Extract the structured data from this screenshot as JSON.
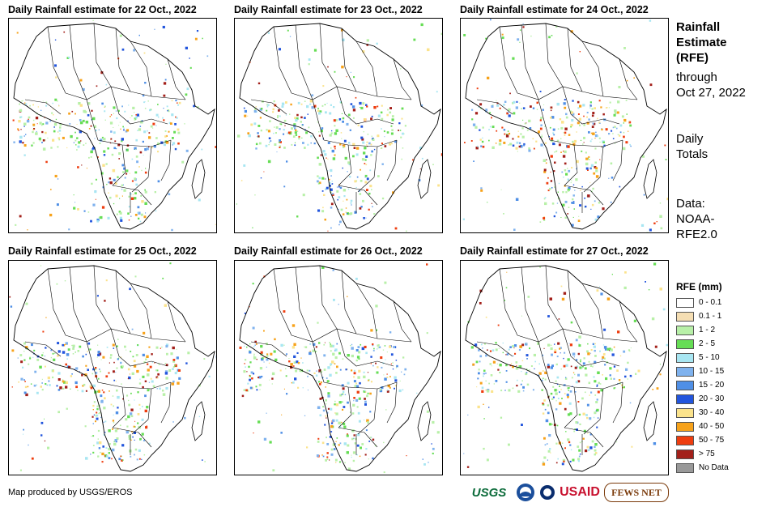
{
  "panels": [
    {
      "title": "Daily Rainfall estimate for 22 Oct., 2022"
    },
    {
      "title": "Daily Rainfall estimate for 23 Oct., 2022"
    },
    {
      "title": "Daily Rainfall estimate for 24 Oct., 2022"
    },
    {
      "title": "Daily Rainfall estimate for 25 Oct., 2022"
    },
    {
      "title": "Daily Rainfall estimate for 26 Oct., 2022"
    },
    {
      "title": "Daily Rainfall estimate for 27 Oct., 2022"
    }
  ],
  "side": {
    "heading": [
      "Rainfall",
      "Estimate",
      "(RFE)"
    ],
    "through": [
      "through",
      "Oct 27, 2022"
    ],
    "totals": [
      "Daily",
      "Totals"
    ],
    "source": [
      "Data:",
      "NOAA-",
      "RFE2.0"
    ]
  },
  "legend": {
    "title": "RFE (mm)",
    "items": [
      {
        "label": "0 - 0.1",
        "color": "#ffffff"
      },
      {
        "label": "0.1 - 1",
        "color": "#f5deb3"
      },
      {
        "label": "1 - 2",
        "color": "#b8f0a8"
      },
      {
        "label": "2 - 5",
        "color": "#66dd55"
      },
      {
        "label": "5 - 10",
        "color": "#a8e6f2"
      },
      {
        "label": "10 - 15",
        "color": "#7fb2ee"
      },
      {
        "label": "15 - 20",
        "color": "#4f8fe6"
      },
      {
        "label": "20 - 30",
        "color": "#2255dd"
      },
      {
        "label": "30 - 40",
        "color": "#fbe38c"
      },
      {
        "label": "40 - 50",
        "color": "#f7a21a"
      },
      {
        "label": "50 - 75",
        "color": "#ee3d0f"
      },
      {
        "label": "> 75",
        "color": "#a3201a"
      },
      {
        "label": "No Data",
        "color": "#999999"
      }
    ]
  },
  "footer": {
    "credit": "Map produced by USGS/EROS",
    "logos": [
      "USGS",
      "NOAA",
      "USAID",
      "FEWS NET"
    ]
  }
}
